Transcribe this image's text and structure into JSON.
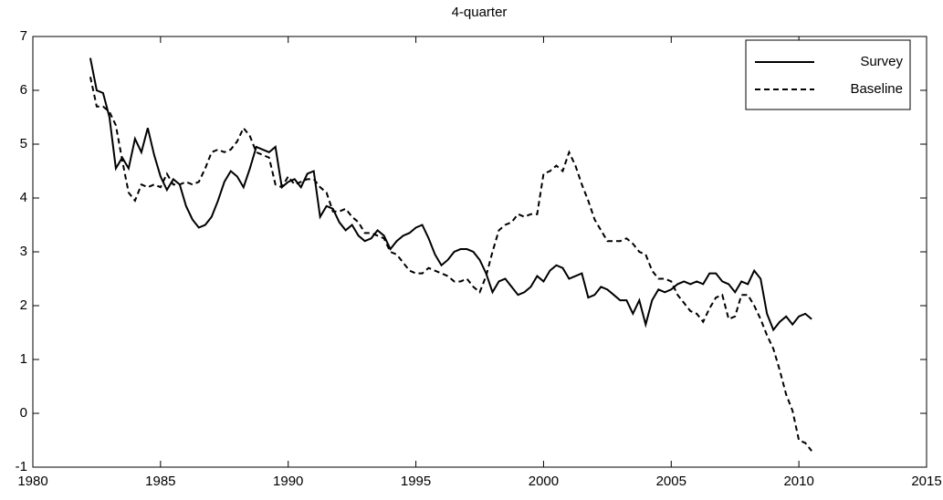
{
  "chart_data": {
    "type": "line",
    "title": "4-quarter",
    "x": [
      1982.25,
      1982.5,
      1982.75,
      1983,
      1983.25,
      1983.5,
      1983.75,
      1984,
      1984.25,
      1984.5,
      1984.75,
      1985,
      1985.25,
      1985.5,
      1985.75,
      1986,
      1986.25,
      1986.5,
      1986.75,
      1987,
      1987.25,
      1987.5,
      1987.75,
      1988,
      1988.25,
      1988.5,
      1988.75,
      1989,
      1989.25,
      1989.5,
      1989.75,
      1990,
      1990.25,
      1990.5,
      1990.75,
      1991,
      1991.25,
      1991.5,
      1991.75,
      1992,
      1992.25,
      1992.5,
      1992.75,
      1993,
      1993.25,
      1993.5,
      1993.75,
      1994,
      1994.25,
      1994.5,
      1994.75,
      1995,
      1995.25,
      1995.5,
      1995.75,
      1996,
      1996.25,
      1996.5,
      1996.75,
      1997,
      1997.25,
      1997.5,
      1997.75,
      1998,
      1998.25,
      1998.5,
      1998.75,
      1999,
      1999.25,
      1999.5,
      1999.75,
      2000,
      2000.25,
      2000.5,
      2000.75,
      2001,
      2001.25,
      2001.5,
      2001.75,
      2002,
      2002.25,
      2002.5,
      2002.75,
      2003,
      2003.25,
      2003.5,
      2003.75,
      2004,
      2004.25,
      2004.5,
      2004.75,
      2005,
      2005.25,
      2005.5,
      2005.75,
      2006,
      2006.25,
      2006.5,
      2006.75,
      2007,
      2007.25,
      2007.5,
      2007.75,
      2008,
      2008.25,
      2008.5,
      2008.75,
      2009,
      2009.25,
      2009.5,
      2009.75,
      2010,
      2010.25,
      2010.5
    ],
    "series": [
      {
        "name": "Survey",
        "color": "#000000",
        "dash": "solid",
        "values": [
          6.6,
          6.0,
          5.95,
          5.5,
          4.55,
          4.75,
          4.55,
          5.1,
          4.85,
          5.3,
          4.8,
          4.4,
          4.15,
          4.35,
          4.25,
          3.85,
          3.6,
          3.45,
          3.5,
          3.65,
          3.95,
          4.3,
          4.5,
          4.4,
          4.2,
          4.55,
          4.95,
          4.9,
          4.85,
          4.95,
          4.2,
          4.3,
          4.35,
          4.2,
          4.45,
          4.5,
          3.65,
          3.85,
          3.8,
          3.55,
          3.4,
          3.5,
          3.3,
          3.2,
          3.25,
          3.4,
          3.3,
          3.05,
          3.2,
          3.3,
          3.35,
          3.45,
          3.5,
          3.25,
          2.95,
          2.75,
          2.85,
          3.0,
          3.05,
          3.05,
          3.0,
          2.85,
          2.6,
          2.25,
          2.45,
          2.5,
          2.35,
          2.2,
          2.25,
          2.35,
          2.55,
          2.45,
          2.65,
          2.75,
          2.7,
          2.5,
          2.55,
          2.6,
          2.15,
          2.2,
          2.35,
          2.3,
          2.2,
          2.1,
          2.1,
          1.85,
          2.1,
          1.65,
          2.1,
          2.3,
          2.25,
          2.3,
          2.4,
          2.45,
          2.4,
          2.45,
          2.4,
          2.6,
          2.6,
          2.45,
          2.4,
          2.25,
          2.45,
          2.4,
          2.65,
          2.5,
          1.85,
          1.55,
          1.7,
          1.8,
          1.65,
          1.8,
          1.85,
          1.75
        ]
      },
      {
        "name": "Baseline",
        "color": "#000000",
        "dash": "dashed",
        "values": [
          6.25,
          5.7,
          5.7,
          5.6,
          5.35,
          4.7,
          4.1,
          3.95,
          4.25,
          4.2,
          4.25,
          4.2,
          4.45,
          4.25,
          4.25,
          4.3,
          4.25,
          4.3,
          4.55,
          4.85,
          4.9,
          4.85,
          4.9,
          5.05,
          5.3,
          5.15,
          4.85,
          4.8,
          4.75,
          4.25,
          4.2,
          4.4,
          4.25,
          4.3,
          4.35,
          4.35,
          4.2,
          4.1,
          3.75,
          3.75,
          3.8,
          3.65,
          3.55,
          3.35,
          3.35,
          3.3,
          3.25,
          3.0,
          2.95,
          2.8,
          2.65,
          2.6,
          2.6,
          2.7,
          2.65,
          2.6,
          2.55,
          2.45,
          2.45,
          2.5,
          2.35,
          2.25,
          2.55,
          3.0,
          3.4,
          3.5,
          3.55,
          3.7,
          3.65,
          3.7,
          3.7,
          4.45,
          4.5,
          4.6,
          4.5,
          4.85,
          4.6,
          4.25,
          3.95,
          3.6,
          3.4,
          3.2,
          3.2,
          3.2,
          3.25,
          3.15,
          3.0,
          2.95,
          2.65,
          2.5,
          2.5,
          2.45,
          2.2,
          2.05,
          1.9,
          1.85,
          1.7,
          1.95,
          2.15,
          2.2,
          1.75,
          1.8,
          2.2,
          2.2,
          2.0,
          1.75,
          1.45,
          1.2,
          0.8,
          0.35,
          0.05,
          -0.5,
          -0.55,
          -0.7
        ]
      }
    ],
    "xlim": [
      1980,
      2015
    ],
    "xticks": [
      1980,
      1985,
      1990,
      1995,
      2000,
      2005,
      2010,
      2015
    ],
    "ylim": [
      -1,
      7
    ],
    "yticks": [
      -1,
      0,
      1,
      2,
      3,
      4,
      5,
      6,
      7
    ],
    "grid": false,
    "legend": "upper right"
  }
}
